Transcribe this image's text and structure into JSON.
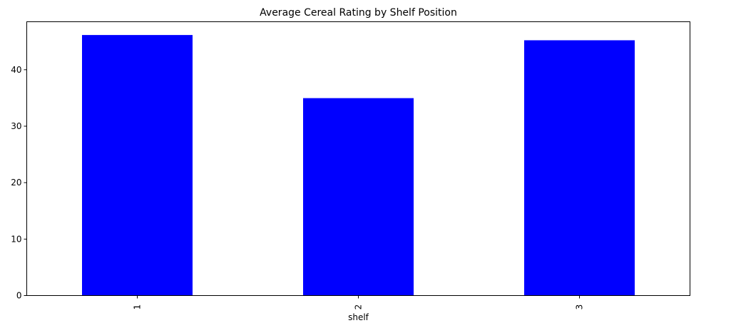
{
  "chart_data": {
    "type": "bar",
    "title": "Average Cereal Rating by Shelf Position",
    "xlabel": "shelf",
    "ylabel": "",
    "categories": [
      "1",
      "2",
      "3"
    ],
    "values": [
      46.15,
      34.97,
      45.22
    ],
    "ylim": [
      0,
      48.5
    ],
    "yticks": [
      0,
      10,
      20,
      30,
      40
    ],
    "bar_color": "#0000ff",
    "grid": false,
    "legend": "none",
    "x_tick_rotation": "vertical"
  }
}
